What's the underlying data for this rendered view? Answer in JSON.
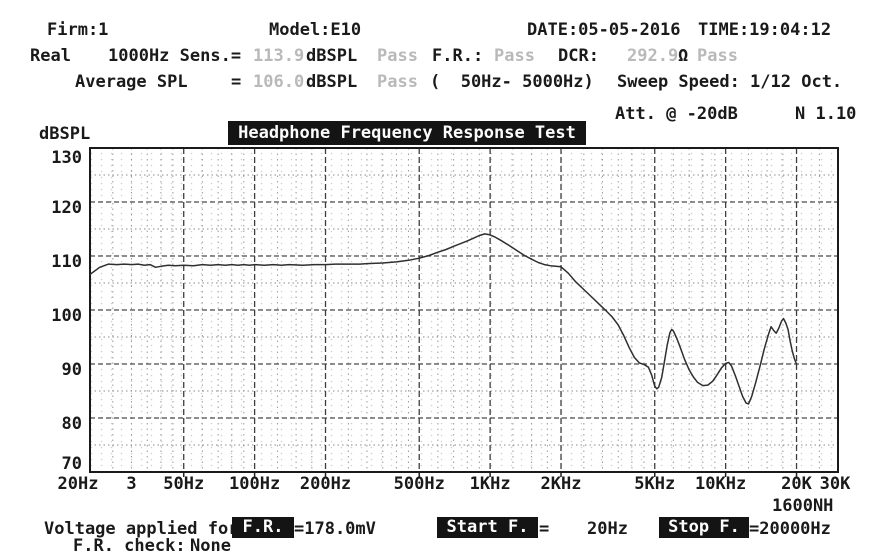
{
  "header": {
    "firm": "Firm:1",
    "model": "Model:E10",
    "date": "DATE:05-05-2016",
    "time": "TIME:19:04:12",
    "mode": "Real",
    "sens_label": "1000Hz Sens.=",
    "sens_value": "113.9",
    "sens_unit": "dBSPL",
    "sens_result": "Pass",
    "fr_label": "F.R.:",
    "fr_result": "Pass",
    "dcr_label": "DCR:",
    "dcr_value": "292.9",
    "dcr_unit": "Ω",
    "dcr_result": "Pass",
    "avg_label": "Average SPL",
    "avg_eq": "=",
    "avg_value": "106.0",
    "avg_unit": "dBSPL",
    "avg_result": "Pass",
    "range": "(  50Hz- 5000Hz)",
    "sweep": "Sweep Speed: 1/12 Oct.",
    "attenuation": "Att. @ -20dB",
    "n_value": "N 1.10"
  },
  "chart_data": {
    "type": "line",
    "title": "Headphone Frequency Response Test",
    "ylabel": "dBSPL",
    "x_note": "1600NH",
    "x_scale": "log",
    "xlim": [
      20,
      30000
    ],
    "ylim": [
      70,
      130
    ],
    "grid": true,
    "yticks": [
      130,
      120,
      110,
      100,
      90,
      80,
      70
    ],
    "yticks_minor": [
      125,
      115,
      105,
      95,
      85,
      75
    ],
    "xticks": [
      {
        "f": 20,
        "label": "20Hz"
      },
      {
        "f": 30,
        "label": "3"
      },
      {
        "f": 50,
        "label": "50Hz"
      },
      {
        "f": 100,
        "label": "100Hz"
      },
      {
        "f": 200,
        "label": "200Hz"
      },
      {
        "f": 500,
        "label": "500Hz"
      },
      {
        "f": 1000,
        "label": "1KHz"
      },
      {
        "f": 2000,
        "label": "2KHz"
      },
      {
        "f": 5000,
        "label": "5KHz"
      },
      {
        "f": 10000,
        "label": "10KHz"
      },
      {
        "f": 20000,
        "label": "20K"
      },
      {
        "f": 30000,
        "label": "30K"
      }
    ],
    "xgrid_major": [
      50,
      100,
      200,
      500,
      1000,
      2000,
      5000,
      10000,
      20000
    ],
    "xgrid_minor": [
      25,
      30,
      35,
      40,
      45,
      60,
      70,
      80,
      90,
      125,
      150,
      175,
      250,
      300,
      350,
      400,
      450,
      600,
      700,
      800,
      900,
      1250,
      1500,
      1750,
      2500,
      3000,
      3500,
      4000,
      4500,
      6000,
      7000,
      8000,
      9000,
      12500,
      15000,
      17500,
      25000
    ],
    "series": [
      {
        "name": "SPL response (dBSPL vs Hz)",
        "points": [
          [
            20,
            106.6
          ],
          [
            22,
            107.9
          ],
          [
            24,
            108.5
          ],
          [
            26,
            108.4
          ],
          [
            28,
            108.5
          ],
          [
            30,
            108.4
          ],
          [
            32,
            108.5
          ],
          [
            34,
            108.3
          ],
          [
            36,
            108.4
          ],
          [
            38,
            107.9
          ],
          [
            40,
            108.1
          ],
          [
            43,
            108.3
          ],
          [
            46,
            108.2
          ],
          [
            50,
            108.3
          ],
          [
            55,
            108.2
          ],
          [
            60,
            108.4
          ],
          [
            65,
            108.3
          ],
          [
            70,
            108.4
          ],
          [
            75,
            108.3
          ],
          [
            80,
            108.4
          ],
          [
            85,
            108.3
          ],
          [
            90,
            108.4
          ],
          [
            95,
            108.3
          ],
          [
            100,
            108.4
          ],
          [
            110,
            108.3
          ],
          [
            120,
            108.4
          ],
          [
            130,
            108.3
          ],
          [
            140,
            108.4
          ],
          [
            160,
            108.3
          ],
          [
            180,
            108.4
          ],
          [
            200,
            108.4
          ],
          [
            220,
            108.5
          ],
          [
            250,
            108.5
          ],
          [
            280,
            108.5
          ],
          [
            300,
            108.6
          ],
          [
            350,
            108.7
          ],
          [
            400,
            108.9
          ],
          [
            450,
            109.2
          ],
          [
            500,
            109.6
          ],
          [
            550,
            110.1
          ],
          [
            600,
            110.7
          ],
          [
            650,
            111.2
          ],
          [
            700,
            111.8
          ],
          [
            750,
            112.3
          ],
          [
            800,
            112.8
          ],
          [
            850,
            113.3
          ],
          [
            900,
            113.8
          ],
          [
            950,
            114.1
          ],
          [
            1000,
            113.9
          ],
          [
            1050,
            113.5
          ],
          [
            1100,
            113.0
          ],
          [
            1200,
            112.0
          ],
          [
            1300,
            111.0
          ],
          [
            1400,
            110.1
          ],
          [
            1500,
            109.4
          ],
          [
            1600,
            108.8
          ],
          [
            1700,
            108.4
          ],
          [
            1800,
            108.2
          ],
          [
            1900,
            108.1
          ],
          [
            2000,
            108.0
          ],
          [
            2150,
            106.8
          ],
          [
            2300,
            105.3
          ],
          [
            2500,
            103.8
          ],
          [
            2700,
            102.4
          ],
          [
            2900,
            101.1
          ],
          [
            3100,
            99.9
          ],
          [
            3300,
            98.7
          ],
          [
            3500,
            97.2
          ],
          [
            3700,
            95.2
          ],
          [
            3900,
            93.0
          ],
          [
            4100,
            91.2
          ],
          [
            4300,
            90.2
          ],
          [
            4500,
            89.9
          ],
          [
            4700,
            89.4
          ],
          [
            4850,
            88.0
          ],
          [
            5000,
            85.9
          ],
          [
            5100,
            85.4
          ],
          [
            5200,
            85.7
          ],
          [
            5350,
            87.5
          ],
          [
            5500,
            90.5
          ],
          [
            5650,
            93.5
          ],
          [
            5800,
            95.8
          ],
          [
            5900,
            96.4
          ],
          [
            6000,
            96.1
          ],
          [
            6200,
            94.8
          ],
          [
            6400,
            93.2
          ],
          [
            6700,
            90.8
          ],
          [
            7000,
            88.9
          ],
          [
            7300,
            87.6
          ],
          [
            7600,
            86.6
          ],
          [
            8000,
            86.0
          ],
          [
            8400,
            86.1
          ],
          [
            8800,
            86.8
          ],
          [
            9200,
            88.0
          ],
          [
            9600,
            89.3
          ],
          [
            10000,
            90.1
          ],
          [
            10300,
            90.3
          ],
          [
            10600,
            89.6
          ],
          [
            11000,
            87.8
          ],
          [
            11400,
            85.9
          ],
          [
            11800,
            84.0
          ],
          [
            12200,
            82.8
          ],
          [
            12500,
            82.6
          ],
          [
            12900,
            84.0
          ],
          [
            13400,
            86.5
          ],
          [
            14000,
            89.6
          ],
          [
            14600,
            92.8
          ],
          [
            15200,
            95.5
          ],
          [
            15600,
            96.9
          ],
          [
            16000,
            96.2
          ],
          [
            16400,
            95.7
          ],
          [
            16800,
            96.6
          ],
          [
            17300,
            98.0
          ],
          [
            17600,
            98.4
          ],
          [
            18000,
            97.6
          ],
          [
            18400,
            96.4
          ],
          [
            18800,
            94.2
          ],
          [
            19200,
            92.3
          ],
          [
            19600,
            90.9
          ],
          [
            20000,
            90.0
          ]
        ]
      }
    ]
  },
  "footer": {
    "voltage_label": "Voltage applied for",
    "fr_button": "F.R.",
    "fr_value": "=178.0mV",
    "start_button": "Start F.",
    "start_eq": "=",
    "start_value": "20Hz",
    "stop_button": "Stop F.",
    "stop_value": "=20000Hz",
    "check_label": "F.R. check:",
    "check_value": "None"
  },
  "colors": {
    "text": "#1a1a1a",
    "muted_value": "#b9b9b9",
    "inverse_bg": "#141414",
    "inverse_text": "#fcfcfc",
    "curve": "#2f2f2f",
    "grid_major": "#4a4a4a",
    "grid_minor": "#999999"
  }
}
